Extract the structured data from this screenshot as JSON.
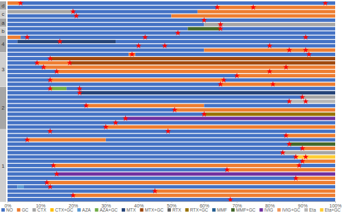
{
  "chart_data": {
    "type": "timeline",
    "orientation": "horizontal",
    "stacked": true,
    "legend": "bottom",
    "xlim": [
      0,
      100
    ],
    "xticks": [
      {
        "value": 0,
        "label": "0%"
      },
      {
        "value": 10,
        "label": "10%"
      },
      {
        "value": 20,
        "label": "20%"
      },
      {
        "value": 30,
        "label": "30%"
      },
      {
        "value": 40,
        "label": "40%"
      },
      {
        "value": 50,
        "label": "50%"
      },
      {
        "value": 60,
        "label": "60%"
      },
      {
        "value": 70,
        "label": "70%"
      },
      {
        "value": 80,
        "label": "80%"
      },
      {
        "value": 90,
        "label": "90%"
      },
      {
        "value": 100,
        "label": "100%"
      }
    ],
    "series": [
      {
        "name": "NO",
        "color": "#4472c4"
      },
      {
        "name": "GC",
        "color": "#ed7d31"
      },
      {
        "name": "CTX",
        "color": "#a5a5a5"
      },
      {
        "name": "CTX+GC",
        "color": "#ffc000"
      },
      {
        "name": "AZA",
        "color": "#5b9bd5"
      },
      {
        "name": "AZA+GC",
        "color": "#70ad47"
      },
      {
        "name": "MTX",
        "color": "#264478"
      },
      {
        "name": "MTX+GC",
        "color": "#9e480e"
      },
      {
        "name": "RTX",
        "color": "#636363"
      },
      {
        "name": "RTX+GC",
        "color": "#997300"
      },
      {
        "name": "MMF",
        "color": "#255e91"
      },
      {
        "name": "MMF+GC",
        "color": "#43682b"
      },
      {
        "name": "IVIG",
        "color": "#7030a0"
      },
      {
        "name": "IVIG+GC",
        "color": "#f1975a"
      },
      {
        "name": "Eta",
        "color": "#b7b7b7"
      },
      {
        "name": "Eta+GC",
        "color": "#ffcd33"
      }
    ],
    "groups": [
      {
        "label": "d",
        "size": 2
      },
      {
        "label": "c",
        "size": 2
      },
      {
        "label": "a",
        "size": 2
      },
      {
        "label": "b",
        "size": 2
      },
      {
        "label": "4",
        "size": 4
      },
      {
        "label": "3",
        "size": 8
      },
      {
        "label": "2",
        "size": 10
      },
      {
        "label": "1",
        "size": 17
      }
    ],
    "rows": [
      {
        "segments": [
          [
            1,
            4
          ],
          [
            0,
            96
          ]
        ],
        "events": [
          4,
          97
        ]
      },
      {
        "segments": [
          [
            0,
            64
          ],
          [
            1,
            36
          ]
        ],
        "events": [
          64,
          75
        ]
      },
      {
        "segments": [
          [
            2,
            20
          ],
          [
            0,
            38
          ],
          [
            1,
            42
          ]
        ],
        "events": [
          20
        ]
      },
      {
        "segments": [
          [
            0,
            50
          ],
          [
            1,
            50
          ]
        ],
        "events": [
          21
        ]
      },
      {
        "segments": [
          [
            0,
            100
          ]
        ],
        "events": [
          60
        ]
      },
      {
        "segments": [
          [
            0,
            60
          ],
          [
            2,
            40
          ]
        ],
        "events": [
          65
        ]
      },
      {
        "segments": [
          [
            0,
            55
          ],
          [
            11,
            10
          ],
          [
            0,
            35
          ]
        ],
        "events": [
          65
        ]
      },
      {
        "segments": [
          [
            0,
            100
          ]
        ],
        "events": [
          52
        ]
      },
      {
        "segments": [
          [
            1,
            4
          ],
          [
            0,
            96
          ]
        ],
        "events": [
          6,
          42,
          91
        ]
      },
      {
        "segments": [
          [
            0,
            3
          ],
          [
            6,
            30
          ],
          [
            0,
            67
          ]
        ],
        "events": [
          16
        ]
      },
      {
        "segments": [
          [
            0,
            100
          ]
        ],
        "events": [
          40,
          48,
          80
        ]
      },
      {
        "segments": [
          [
            0,
            60
          ],
          [
            1,
            40
          ]
        ],
        "events": [
          86,
          91
        ]
      },
      {
        "segments": [
          [
            0,
            37
          ],
          [
            1,
            2
          ],
          [
            0,
            61
          ]
        ],
        "events": [
          38,
          92
        ]
      },
      {
        "segments": [
          [
            0,
            13
          ],
          [
            7,
            87
          ]
        ],
        "events": [
          13
        ]
      },
      {
        "segments": [
          [
            0,
            9
          ],
          [
            1,
            10
          ],
          [
            7,
            81
          ]
        ],
        "events": [
          9,
          19
        ]
      },
      {
        "segments": [
          [
            0,
            11
          ],
          [
            1,
            89
          ]
        ],
        "events": [
          11,
          85
        ]
      },
      {
        "segments": [
          [
            0,
            15
          ],
          [
            1,
            85
          ]
        ],
        "events": [
          15,
          80
        ]
      },
      {
        "segments": [
          [
            0,
            70
          ],
          [
            1,
            30
          ]
        ],
        "events": [
          70
        ]
      },
      {
        "segments": [
          [
            0,
            13
          ],
          [
            1,
            53
          ],
          [
            0,
            34
          ]
        ],
        "events": [
          13,
          66
        ]
      },
      {
        "segments": [
          [
            0,
            65
          ],
          [
            1,
            35
          ]
        ],
        "events": [
          65,
          81
        ]
      },
      {
        "segments": [
          [
            0,
            13
          ],
          [
            5,
            5
          ],
          [
            0,
            82
          ]
        ],
        "events": [
          13,
          22
        ]
      },
      {
        "segments": [
          [
            0,
            22
          ],
          [
            6,
            78
          ]
        ],
        "events": [
          22
        ]
      },
      {
        "segments": [
          [
            0,
            90
          ],
          [
            2,
            10
          ]
        ],
        "events": [
          90
        ]
      },
      {
        "segments": [
          [
            0,
            86
          ],
          [
            14,
            14
          ]
        ],
        "events": [
          86,
          91
        ]
      },
      {
        "segments": [
          [
            0,
            24
          ],
          [
            1,
            36
          ],
          [
            0,
            40
          ]
        ],
        "events": [
          24
        ]
      },
      {
        "segments": [
          [
            0,
            51
          ],
          [
            1,
            49
          ]
        ],
        "events": [
          51
        ]
      },
      {
        "segments": [
          [
            0,
            60
          ],
          [
            9,
            40
          ]
        ],
        "events": [
          60
        ]
      },
      {
        "segments": [
          [
            0,
            36
          ],
          [
            12,
            64
          ]
        ],
        "events": [
          36
        ]
      },
      {
        "segments": [
          [
            0,
            100
          ]
        ],
        "events": [
          33
        ]
      },
      {
        "segments": [
          [
            0,
            30
          ],
          [
            1,
            70
          ]
        ],
        "events": [
          30
        ]
      },
      {
        "segments": [
          [
            0,
            100
          ]
        ],
        "events": [
          13,
          49
        ]
      },
      {
        "segments": [
          [
            0,
            85
          ],
          [
            1,
            15
          ]
        ],
        "events": [
          85
        ]
      },
      {
        "segments": [
          [
            0,
            6
          ],
          [
            1,
            24
          ],
          [
            0,
            70
          ]
        ],
        "events": [
          6
        ]
      },
      {
        "segments": [
          [
            0,
            86
          ],
          [
            11,
            14
          ]
        ],
        "events": [
          86
        ]
      },
      {
        "segments": [
          [
            0,
            90
          ],
          [
            1,
            10
          ]
        ],
        "events": [
          90
        ]
      },
      {
        "segments": [
          [
            0,
            84
          ],
          [
            2,
            16
          ]
        ],
        "events": [
          84
        ]
      },
      {
        "segments": [
          [
            0,
            88
          ],
          [
            15,
            12
          ]
        ],
        "events": [
          88,
          91
        ]
      },
      {
        "segments": [
          [
            0,
            90
          ],
          [
            1,
            10
          ]
        ],
        "events": [
          90
        ]
      },
      {
        "segments": [
          [
            0,
            14
          ],
          [
            1,
            75
          ],
          [
            0,
            11
          ]
        ],
        "events": [
          14,
          89
        ]
      },
      {
        "segments": [
          [
            0,
            67
          ],
          [
            1,
            33
          ]
        ],
        "events": [
          67
        ]
      },
      {
        "segments": [
          [
            0,
            15
          ],
          [
            12,
            85
          ]
        ],
        "events": [
          15
        ]
      },
      {
        "segments": [
          [
            0,
            88
          ],
          [
            1,
            12
          ]
        ],
        "events": [
          88
        ]
      },
      {
        "segments": [
          [
            0,
            12
          ],
          [
            1,
            88
          ]
        ],
        "events": [
          12
        ]
      },
      {
        "segments": [
          [
            0,
            3
          ],
          [
            4,
            2
          ],
          [
            0,
            95
          ]
        ],
        "events": [
          13
        ]
      },
      {
        "segments": [
          [
            0,
            45
          ],
          [
            1,
            55
          ]
        ],
        "events": [
          45
        ]
      },
      {
        "segments": [
          [
            0,
            20
          ],
          [
            1,
            80
          ]
        ],
        "events": [
          20
        ]
      },
      {
        "segments": [
          [
            0,
            100
          ]
        ],
        "events": [
          68
        ]
      }
    ]
  }
}
